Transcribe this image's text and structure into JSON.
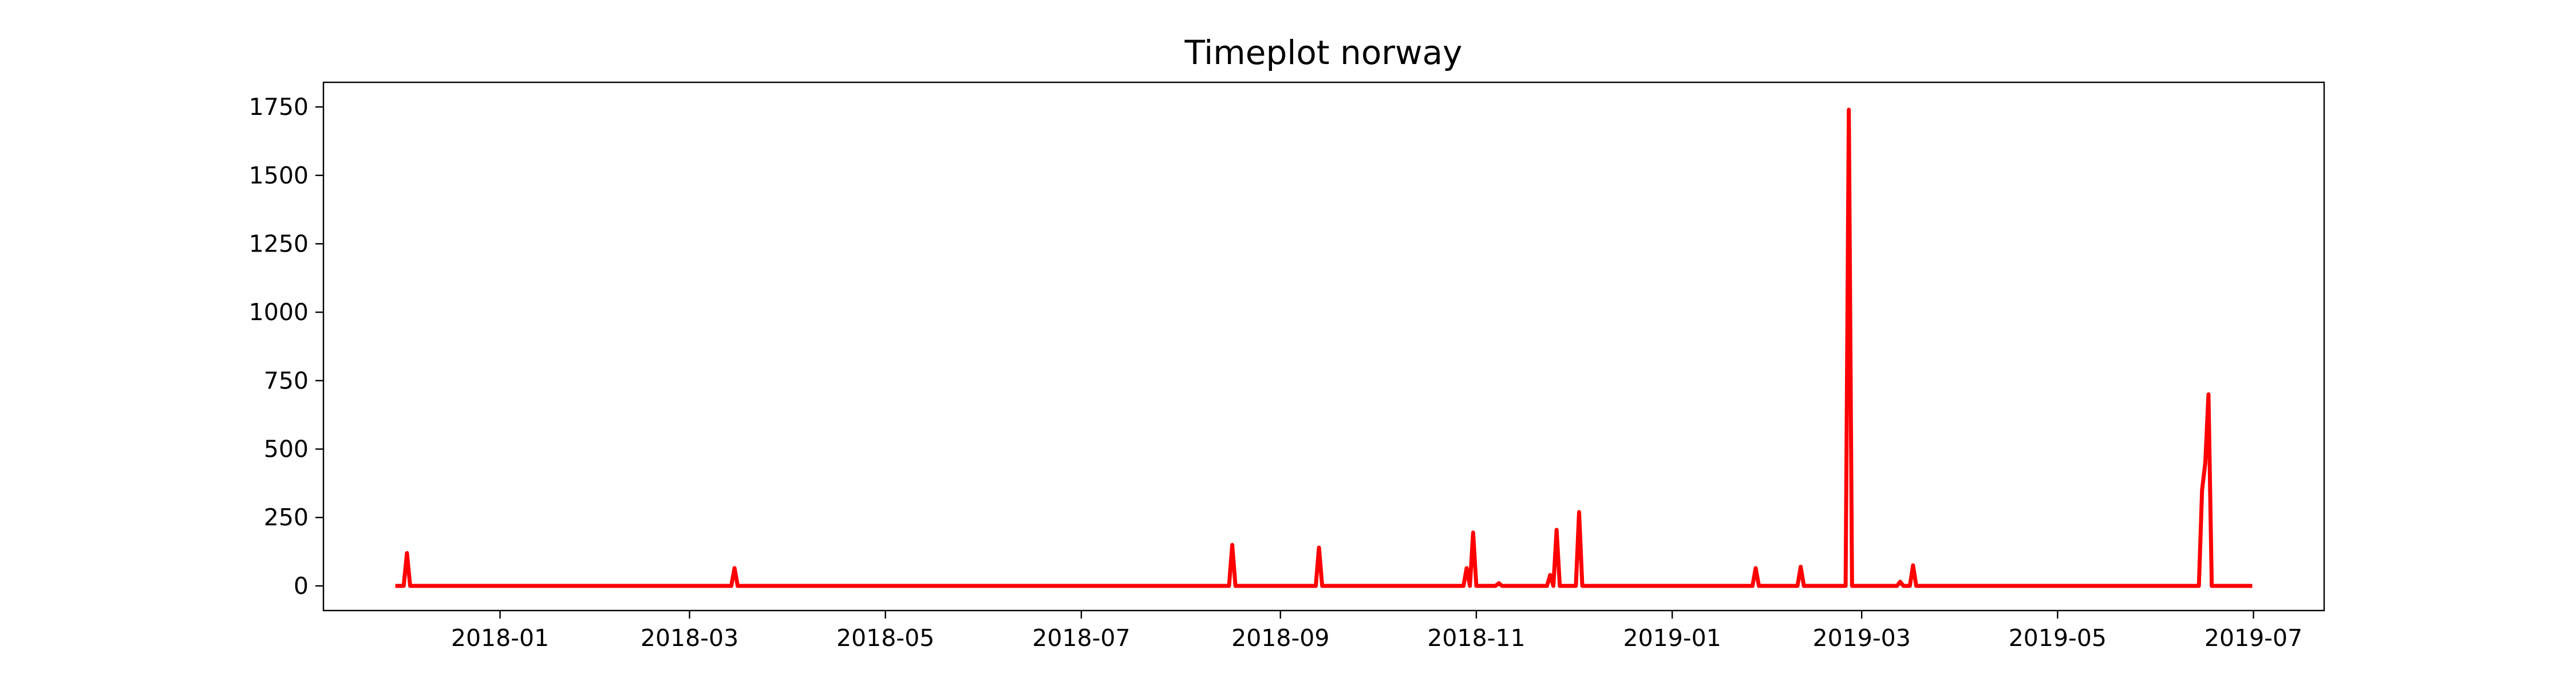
{
  "chart_data": {
    "type": "line",
    "title": "Timeplot norway",
    "xlabel": "",
    "ylabel": "",
    "x_ticks": [
      "2018-01",
      "2018-03",
      "2018-05",
      "2018-07",
      "2018-09",
      "2018-11",
      "2019-01",
      "2019-03",
      "2019-05",
      "2019-07"
    ],
    "y_ticks": [
      0,
      250,
      500,
      750,
      1000,
      1250,
      1500,
      1750
    ],
    "xlim": [
      "2017-11-07",
      "2019-07-23"
    ],
    "ylim": [
      -90,
      1840
    ],
    "grid": false,
    "legend": "none",
    "series": [
      {
        "color": "#ff0000",
        "points": [
          [
            "2017-11-30",
            0
          ],
          [
            "2017-12-01",
            0
          ],
          [
            "2017-12-02",
            0
          ],
          [
            "2017-12-03",
            120
          ],
          [
            "2017-12-04",
            0
          ],
          [
            "2018-03-14",
            0
          ],
          [
            "2018-03-15",
            65
          ],
          [
            "2018-03-16",
            0
          ],
          [
            "2018-08-16",
            0
          ],
          [
            "2018-08-17",
            150
          ],
          [
            "2018-08-18",
            0
          ],
          [
            "2018-09-12",
            0
          ],
          [
            "2018-09-13",
            140
          ],
          [
            "2018-09-14",
            0
          ],
          [
            "2018-10-28",
            0
          ],
          [
            "2018-10-29",
            65
          ],
          [
            "2018-10-30",
            0
          ],
          [
            "2018-10-31",
            195
          ],
          [
            "2018-11-01",
            0
          ],
          [
            "2018-11-07",
            0
          ],
          [
            "2018-11-08",
            10
          ],
          [
            "2018-11-09",
            0
          ],
          [
            "2018-11-23",
            0
          ],
          [
            "2018-11-24",
            40
          ],
          [
            "2018-11-25",
            0
          ],
          [
            "2018-11-26",
            205
          ],
          [
            "2018-11-27",
            0
          ],
          [
            "2018-12-02",
            0
          ],
          [
            "2018-12-03",
            270
          ],
          [
            "2018-12-04",
            0
          ],
          [
            "2019-01-26",
            0
          ],
          [
            "2019-01-27",
            65
          ],
          [
            "2019-01-28",
            0
          ],
          [
            "2019-02-09",
            0
          ],
          [
            "2019-02-10",
            70
          ],
          [
            "2019-02-11",
            0
          ],
          [
            "2019-02-24",
            0
          ],
          [
            "2019-02-25",
            1740
          ],
          [
            "2019-02-26",
            0
          ],
          [
            "2019-03-12",
            0
          ],
          [
            "2019-03-13",
            15
          ],
          [
            "2019-03-14",
            0
          ],
          [
            "2019-03-16",
            0
          ],
          [
            "2019-03-17",
            75
          ],
          [
            "2019-03-18",
            0
          ],
          [
            "2019-06-14",
            0
          ],
          [
            "2019-06-15",
            350
          ],
          [
            "2019-06-16",
            450
          ],
          [
            "2019-06-17",
            700
          ],
          [
            "2019-06-18",
            0
          ],
          [
            "2019-06-30",
            0
          ]
        ]
      }
    ]
  }
}
